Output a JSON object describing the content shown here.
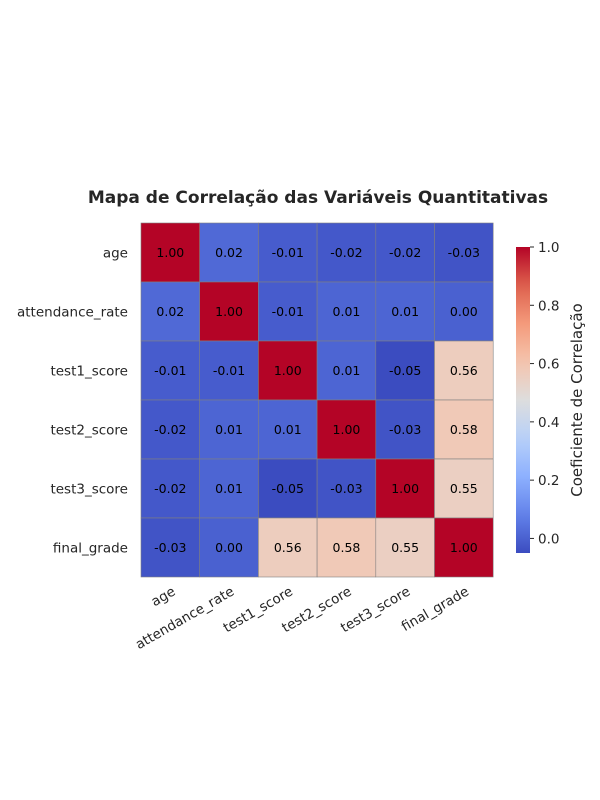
{
  "chart_data": {
    "type": "heatmap",
    "title": "Mapa de Correlação das Variáveis Quantitativas",
    "row_labels": [
      "age",
      "attendance_rate",
      "test1_score",
      "test2_score",
      "test3_score",
      "final_grade"
    ],
    "col_labels": [
      "age",
      "attendance_rate",
      "test1_score",
      "test2_score",
      "test3_score",
      "final_grade"
    ],
    "values": [
      [
        1.0,
        0.02,
        -0.01,
        -0.02,
        -0.02,
        -0.03
      ],
      [
        0.02,
        1.0,
        -0.01,
        0.01,
        0.01,
        0.0
      ],
      [
        -0.01,
        -0.01,
        1.0,
        0.01,
        -0.05,
        0.56
      ],
      [
        -0.02,
        0.01,
        0.01,
        1.0,
        -0.03,
        0.58
      ],
      [
        -0.02,
        0.01,
        -0.05,
        -0.03,
        1.0,
        0.55
      ],
      [
        -0.03,
        0.0,
        0.56,
        0.58,
        0.55,
        1.0
      ]
    ],
    "value_labels": [
      [
        "1.00",
        "0.02",
        "-0.01",
        "-0.02",
        "-0.02",
        "-0.03"
      ],
      [
        "0.02",
        "1.00",
        "-0.01",
        "0.01",
        "0.01",
        "0.00"
      ],
      [
        "-0.01",
        "-0.01",
        "1.00",
        "0.01",
        "-0.05",
        "0.56"
      ],
      [
        "-0.02",
        "0.01",
        "0.01",
        "1.00",
        "-0.03",
        "0.58"
      ],
      [
        "-0.02",
        "0.01",
        "-0.05",
        "-0.03",
        "1.00",
        "0.55"
      ],
      [
        "-0.03",
        "0.00",
        "0.56",
        "0.58",
        "0.55",
        "1.00"
      ]
    ],
    "colormap": "coolwarm",
    "vmin": -0.05,
    "vmax": 1.0,
    "colorbar": {
      "label": "Coeficiente de Correlação",
      "ticks": [
        0.0,
        0.2,
        0.4,
        0.6,
        0.8,
        1.0
      ],
      "tick_labels": [
        "0.0",
        "0.2",
        "0.4",
        "0.6",
        "0.8",
        "1.0"
      ]
    },
    "annot_color": "#000000",
    "cell_border_color": "#808080"
  }
}
